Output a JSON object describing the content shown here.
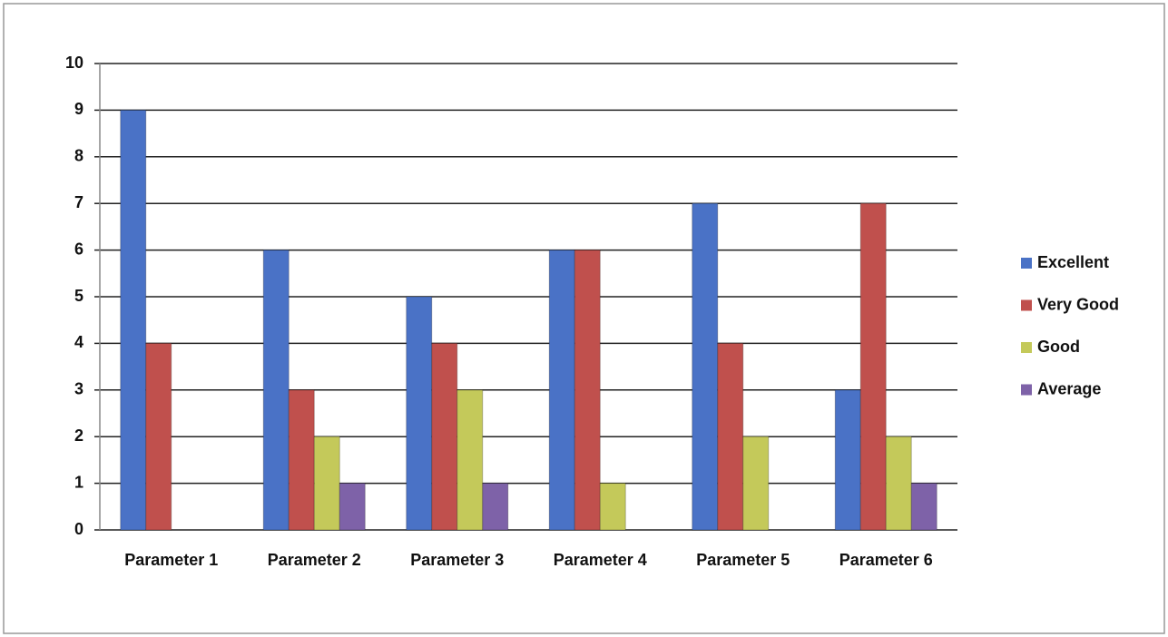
{
  "chart_data": {
    "type": "bar",
    "categories": [
      "Parameter 1",
      "Parameter 2",
      "Parameter 3",
      "Parameter 4",
      "Parameter 5",
      "Parameter 6"
    ],
    "series": [
      {
        "name": "Excellent",
        "color": "#4a72c6",
        "values": [
          9,
          6,
          5,
          6,
          7,
          3
        ]
      },
      {
        "name": "Very Good",
        "color": "#c0504d",
        "values": [
          4,
          3,
          4,
          6,
          4,
          7
        ]
      },
      {
        "name": "Good",
        "color": "#c4c95a",
        "values": [
          0,
          2,
          3,
          1,
          2,
          2
        ]
      },
      {
        "name": "Average",
        "color": "#7e62a8",
        "values": [
          0,
          1,
          1,
          0,
          0,
          1
        ]
      }
    ],
    "ylim": [
      0,
      10
    ],
    "yticks": [
      0,
      1,
      2,
      3,
      4,
      5,
      6,
      7,
      8,
      9,
      10
    ],
    "grid": true,
    "legend": "right"
  }
}
